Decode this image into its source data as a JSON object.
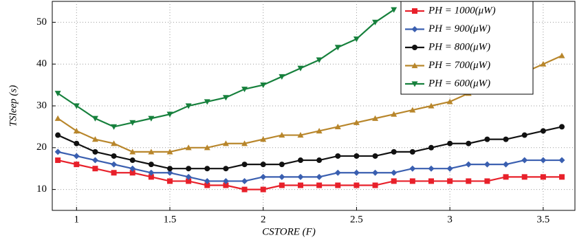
{
  "chart_data": {
    "type": "line",
    "xlabel": "CSTORE (F)",
    "ylabel": "TSleep (s)",
    "x": [
      0.9,
      1.0,
      1.1,
      1.2,
      1.3,
      1.4,
      1.5,
      1.6,
      1.7,
      1.8,
      1.9,
      2.0,
      2.1,
      2.2,
      2.3,
      2.4,
      2.5,
      2.6,
      2.7,
      2.8,
      2.9,
      3.0,
      3.1,
      3.2,
      3.3,
      3.4,
      3.5,
      3.6
    ],
    "series": [
      {
        "name": "PH = 1000(μW)",
        "color": "#e8202a",
        "marker": "square",
        "values": [
          17,
          16,
          15,
          14,
          14,
          13,
          12,
          12,
          11,
          11,
          10,
          10,
          11,
          11,
          11,
          11,
          11,
          11,
          12,
          12,
          12,
          12,
          12,
          12,
          13,
          13,
          13,
          13
        ]
      },
      {
        "name": "PH = 900(μW)",
        "color": "#3a5fb0",
        "marker": "diamond",
        "values": [
          19,
          18,
          17,
          16,
          15,
          14,
          14,
          13,
          12,
          12,
          12,
          13,
          13,
          13,
          13,
          14,
          14,
          14,
          14,
          15,
          15,
          15,
          16,
          16,
          16,
          17,
          17,
          17
        ]
      },
      {
        "name": "PH = 800(μW)",
        "color": "#111111",
        "marker": "circle",
        "values": [
          23,
          21,
          19,
          18,
          17,
          16,
          15,
          15,
          15,
          15,
          16,
          16,
          16,
          17,
          17,
          18,
          18,
          18,
          19,
          19,
          20,
          21,
          21,
          22,
          22,
          23,
          24,
          25
        ]
      },
      {
        "name": "PH = 700(μW)",
        "color": "#b8862b",
        "marker": "triangle-up",
        "values": [
          27,
          24,
          22,
          21,
          19,
          19,
          19,
          20,
          20,
          21,
          21,
          22,
          23,
          23,
          24,
          25,
          26,
          27,
          28,
          29,
          30,
          31,
          33,
          34,
          36,
          38,
          40,
          42
        ]
      },
      {
        "name": "PH = 600(μW)",
        "color": "#16803c",
        "marker": "triangle-down",
        "values": [
          33,
          30,
          27,
          25,
          26,
          27,
          28,
          30,
          31,
          32,
          34,
          35,
          37,
          39,
          41,
          44,
          46,
          50,
          53,
          null,
          null,
          null,
          null,
          null,
          null,
          null,
          null,
          null
        ]
      }
    ],
    "xlim": [
      0.87,
      3.67
    ],
    "ylim": [
      5,
      55
    ],
    "xticks": [
      1,
      1.5,
      2,
      2.5,
      3,
      3.5
    ],
    "yticks": [
      10,
      20,
      30,
      40,
      50
    ],
    "grid": true,
    "legend": "upper-right"
  }
}
